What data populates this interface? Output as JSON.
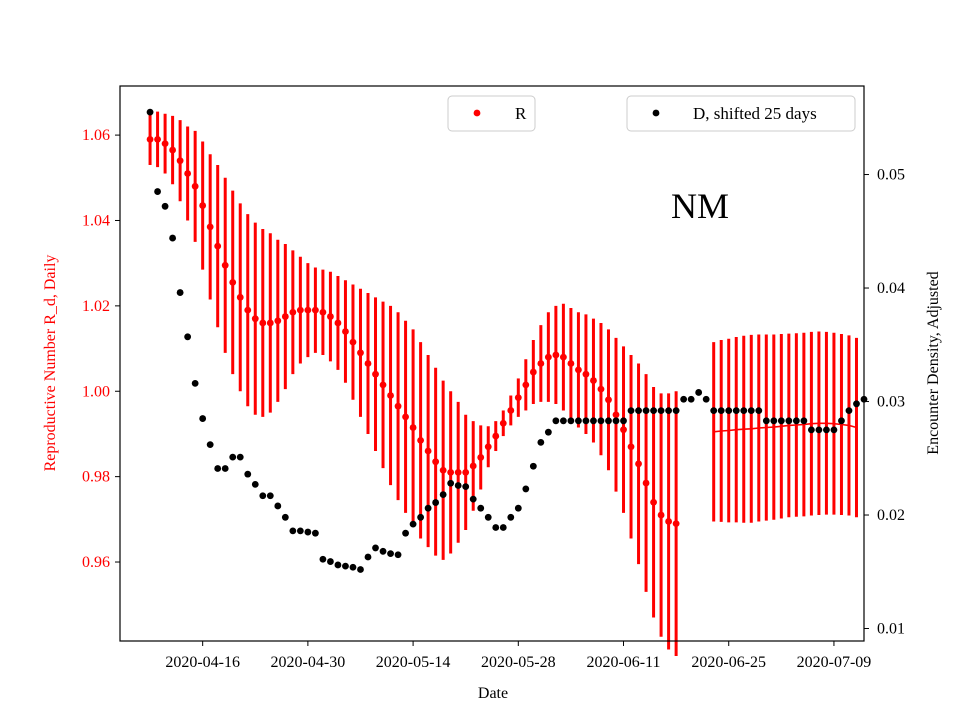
{
  "chart_data": {
    "type": "scatter",
    "xlabel": "Date",
    "ylabel_left": "Reproductive Number R_d, Daily",
    "ylabel_right": "Encounter Density, Adjusted",
    "annotation": "NM",
    "x_ticks": [
      "2020-04-16",
      "2020-04-30",
      "2020-05-14",
      "2020-05-28",
      "2020-06-11",
      "2020-06-25",
      "2020-07-09"
    ],
    "y_left_ticks": [
      "0.96",
      "0.98",
      "1.00",
      "1.02",
      "1.04",
      "1.06"
    ],
    "y_right_ticks": [
      "0.01",
      "0.02",
      "0.03",
      "0.04",
      "0.05"
    ],
    "xlim": [
      "2020-04-05",
      "2020-07-13"
    ],
    "ylim_left": [
      0.9415,
      1.0715
    ],
    "ylim_right": [
      0.0089,
      0.0578
    ],
    "colors": {
      "R": "#ff0000",
      "D": "#000000",
      "left_axis": "#ff0000",
      "right_axis": "#000000"
    },
    "legend": [
      {
        "label": "R",
        "color": "#ff0000",
        "placement": "upper-center"
      },
      {
        "label": "D, shifted 25 days",
        "color": "#000000",
        "placement": "upper-right"
      }
    ],
    "series": [
      {
        "name": "R",
        "axis": "left",
        "x_start": "2020-04-09",
        "values": [
          1.059,
          1.059,
          1.058,
          1.0565,
          1.054,
          1.051,
          1.048,
          1.0435,
          1.0385,
          1.034,
          1.0295,
          1.0255,
          1.022,
          1.019,
          1.017,
          1.016,
          1.016,
          1.0165,
          1.0175,
          1.0185,
          1.019,
          1.019,
          1.019,
          1.0185,
          1.0175,
          1.016,
          1.014,
          1.0115,
          1.009,
          1.0065,
          1.004,
          1.0015,
          0.999,
          0.9965,
          0.994,
          0.9915,
          0.9885,
          0.986,
          0.9835,
          0.9815,
          0.981,
          0.981,
          0.981,
          0.9825,
          0.9845,
          0.987,
          0.9895,
          0.9925,
          0.9955,
          0.9985,
          1.0015,
          1.0045,
          1.0065,
          1.008,
          1.0085,
          1.008,
          1.0065,
          1.005,
          1.004,
          1.0025,
          1.0005,
          0.998,
          0.9945,
          0.991,
          0.987,
          0.983,
          0.9785,
          0.974,
          0.971,
          0.9695,
          0.969
        ],
        "error": [
          0.006,
          0.0065,
          0.007,
          0.008,
          0.0095,
          0.011,
          0.013,
          0.015,
          0.017,
          0.019,
          0.0205,
          0.0215,
          0.022,
          0.0225,
          0.0225,
          0.022,
          0.021,
          0.019,
          0.017,
          0.0145,
          0.0125,
          0.011,
          0.01,
          0.01,
          0.0105,
          0.011,
          0.012,
          0.0135,
          0.015,
          0.0165,
          0.018,
          0.0195,
          0.021,
          0.022,
          0.0225,
          0.023,
          0.023,
          0.0225,
          0.022,
          0.021,
          0.019,
          0.0165,
          0.0135,
          0.0105,
          0.0075,
          0.0048,
          0.0035,
          0.003,
          0.0035,
          0.0045,
          0.006,
          0.0075,
          0.009,
          0.0105,
          0.0115,
          0.0125,
          0.013,
          0.0135,
          0.014,
          0.0145,
          0.0155,
          0.0165,
          0.018,
          0.0195,
          0.0215,
          0.0235,
          0.0255,
          0.027,
          0.0285,
          0.03,
          0.031
        ]
      },
      {
        "name": "R (fitted, late window)",
        "axis": "left",
        "x_start": "2020-06-23",
        "values": [
          0.9905,
          0.9907,
          0.9908,
          0.991,
          0.9911,
          0.9912,
          0.9914,
          0.9915,
          0.9916,
          0.9918,
          0.992,
          0.9921,
          0.9922,
          0.9924,
          0.9925,
          0.9925,
          0.9924,
          0.9922,
          0.992,
          0.9915
        ],
        "error": [
          0.021,
          0.0213,
          0.0215,
          0.0217,
          0.0219,
          0.022,
          0.0219,
          0.0218,
          0.0217,
          0.0216,
          0.0215,
          0.0215,
          0.0215,
          0.0215,
          0.0215,
          0.0214,
          0.0213,
          0.0212,
          0.0211,
          0.021
        ]
      },
      {
        "name": "D, shifted 25 days",
        "axis": "right",
        "x_start": "2020-04-09",
        "values": [
          0.0555,
          0.0485,
          0.0472,
          0.0444,
          0.0396,
          0.0357,
          0.0316,
          0.0285,
          0.0262,
          0.0241,
          0.0241,
          0.0251,
          0.0251,
          0.0236,
          0.0227,
          0.0217,
          0.0217,
          0.0208,
          0.0198,
          0.0186,
          0.0186,
          0.0185,
          0.0184,
          0.0161,
          0.0159,
          0.0156,
          0.0155,
          0.0154,
          0.0152,
          0.0163,
          0.0171,
          0.0168,
          0.0166,
          0.0165,
          0.0184,
          0.0192,
          0.0198,
          0.0206,
          0.0211,
          0.0218,
          0.0228,
          0.0226,
          0.0225,
          0.0214,
          0.0206,
          0.0198,
          0.0189,
          0.0189,
          0.0198,
          0.0206,
          0.0223,
          0.0243,
          0.0264,
          0.0273,
          0.0283,
          0.0283,
          0.0283,
          0.0283,
          0.0283,
          0.0283,
          0.0283,
          0.0283,
          0.0283,
          0.0283,
          0.0292,
          0.0292,
          0.0292,
          0.0292,
          0.0292,
          0.0292,
          0.0292,
          0.0302,
          0.0302,
          0.0308,
          0.0302,
          0.0292,
          0.0292,
          0.0292,
          0.0292,
          0.0292,
          0.0292,
          0.0292,
          0.0283,
          0.0283,
          0.0283,
          0.0283,
          0.0283,
          0.0283,
          0.0275,
          0.0275,
          0.0275,
          0.0275,
          0.0283,
          0.0292,
          0.0298,
          0.0302
        ]
      }
    ]
  }
}
